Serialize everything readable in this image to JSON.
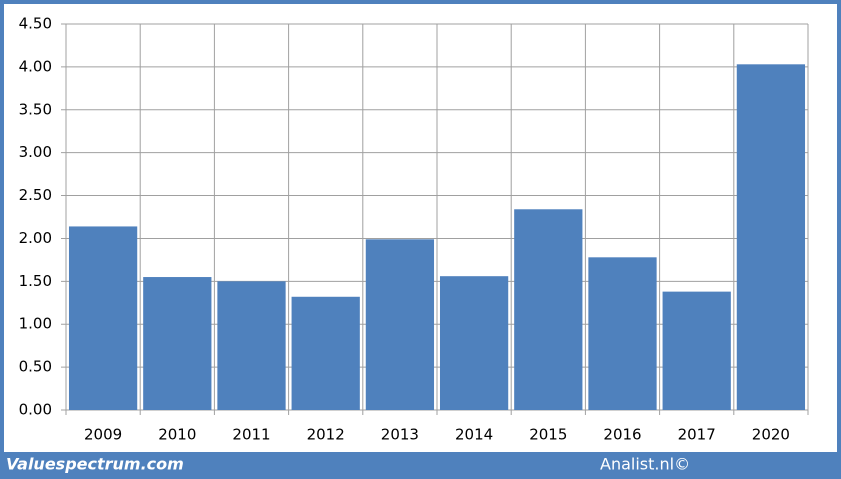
{
  "chart_data": {
    "type": "bar",
    "categories": [
      "2009",
      "2010",
      "2011",
      "2012",
      "2013",
      "2014",
      "2015",
      "2016",
      "2017",
      "2020"
    ],
    "values": [
      2.14,
      1.55,
      1.5,
      1.32,
      1.99,
      1.56,
      2.34,
      1.78,
      1.38,
      4.03
    ],
    "color": "#4f81bd",
    "ylim": [
      0,
      4.5
    ],
    "yticks": [
      {
        "value": 0,
        "label": "0.00"
      },
      {
        "value": 0.5,
        "label": "0.50"
      },
      {
        "value": 1,
        "label": "1.00"
      },
      {
        "value": 1.5,
        "label": "1.50"
      },
      {
        "value": 2,
        "label": "2.00"
      },
      {
        "value": 2.5,
        "label": "2.50"
      },
      {
        "value": 3,
        "label": "3.00"
      },
      {
        "value": 3.5,
        "label": "3.50"
      },
      {
        "value": 4,
        "label": "4.00"
      },
      {
        "value": 4.5,
        "label": "4.50"
      }
    ],
    "grid": true
  },
  "footer": {
    "left": "Valuespectrum.com",
    "right": "Analist.nl©"
  }
}
